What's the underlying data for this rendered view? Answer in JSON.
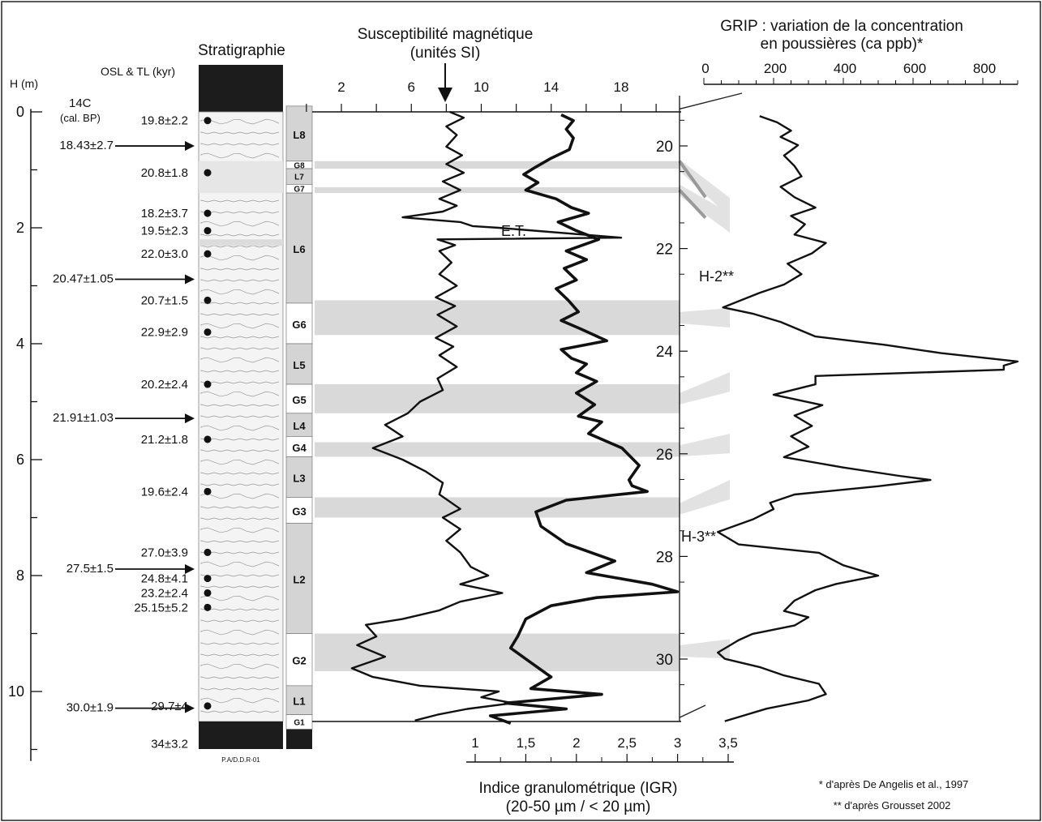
{
  "labels": {
    "h_axis_title": "H (m)",
    "c14_title": "14C",
    "c14_sub": "(cal. BP)",
    "osl_title": "OSL & TL (kyr)",
    "strat_title": "Stratigraphie",
    "susc_title_1": "Susceptibilité magnétique",
    "susc_title_2": "(unités SI)",
    "grip_title_1": "GRIP : variation de la concentration",
    "grip_title_2": "en poussières (ca ppb)*",
    "igr_title_1": "Indice granulométrique (IGR)",
    "igr_title_2": "(20-50 µm / < 20 µm)",
    "ref1": "* d'après De Angelis et al., 1997",
    "ref2": "** d'après Grousset 2002",
    "logo": "P.A/D.D.R-01",
    "et_label": "E.T.",
    "h2_label": "H-2**",
    "h3_label": "H-3**"
  },
  "chart_data": {
    "type": "line",
    "depth_axis": {
      "label": "H (m)",
      "ticks": [
        0,
        2,
        4,
        6,
        8,
        10
      ],
      "range": [
        0,
        10.8
      ]
    },
    "susceptibility_axis": {
      "label": "Susceptibilité magnétique (unités SI)",
      "ticks": [
        2,
        6,
        10,
        14,
        18
      ],
      "range": [
        0,
        20
      ]
    },
    "igr_axis": {
      "label": "Indice granulométrique (IGR) (20-50 µm / < 20 µm)",
      "ticks": [
        "1",
        "1,5",
        "2",
        "2,5",
        "3",
        "3,5"
      ],
      "range": [
        0.8,
        3.5
      ]
    },
    "grip_age_axis": {
      "ticks": [
        20,
        22,
        24,
        26,
        28,
        30
      ]
    },
    "grip_dust_axis": {
      "label": "GRIP : variation de la concentration en poussières (ca ppb)*",
      "ticks": [
        0,
        200,
        400,
        600,
        800
      ],
      "range": [
        0,
        900
      ]
    },
    "c14_dates": [
      {
        "label": "18.43±2.7",
        "depth": 0.7
      },
      {
        "label": "20.47±1.05",
        "depth": 3.0
      },
      {
        "label": "21.91±1.03",
        "depth": 5.4
      },
      {
        "label": "27.5±1.5",
        "depth": 8.0
      },
      {
        "label": "30.0±1.9",
        "depth": 10.4
      }
    ],
    "osl_dates": [
      {
        "label": "19.8±2.2",
        "depth": 0.15
      },
      {
        "label": "20.8±1.8",
        "depth": 1.05
      },
      {
        "label": "18.2±3.7",
        "depth": 1.75
      },
      {
        "label": "19.5±2.3",
        "depth": 2.05
      },
      {
        "label": "22.0±3.0",
        "depth": 2.45
      },
      {
        "label": "20.7±1.5",
        "depth": 3.25
      },
      {
        "label": "22.9±2.9",
        "depth": 3.8
      },
      {
        "label": "20.2±2.4",
        "depth": 4.7
      },
      {
        "label": "21.2±1.8",
        "depth": 5.65
      },
      {
        "label": "19.6±2.4",
        "depth": 6.55
      },
      {
        "label": "27.0±3.9",
        "depth": 7.6
      },
      {
        "label": "24.8±4.1",
        "depth": 8.05
      },
      {
        "label": "23.2±2.4",
        "depth": 8.3
      },
      {
        "label": "25.15±5.2",
        "depth": 8.55
      },
      {
        "label": "29.7±4",
        "depth": 10.25
      },
      {
        "label": "34±3.2",
        "depth": 10.9
      }
    ],
    "units": [
      {
        "label": "L8",
        "top": -0.1,
        "bottom": 0.85,
        "type": "L"
      },
      {
        "label": "G8",
        "top": 0.85,
        "bottom": 0.98,
        "type": "G"
      },
      {
        "label": "L7",
        "top": 0.98,
        "bottom": 1.25,
        "type": "L"
      },
      {
        "label": "G7",
        "top": 1.25,
        "bottom": 1.4,
        "type": "G"
      },
      {
        "label": "L6",
        "top": 1.4,
        "bottom": 3.3,
        "type": "L"
      },
      {
        "label": "G6",
        "top": 3.3,
        "bottom": 4.0,
        "type": "G"
      },
      {
        "label": "L5",
        "top": 4.0,
        "bottom": 4.7,
        "type": "L"
      },
      {
        "label": "G5",
        "top": 4.7,
        "bottom": 5.2,
        "type": "G"
      },
      {
        "label": "L4",
        "top": 5.2,
        "bottom": 5.6,
        "type": "L"
      },
      {
        "label": "G4",
        "top": 5.6,
        "bottom": 5.95,
        "type": "G"
      },
      {
        "label": "L3",
        "top": 5.95,
        "bottom": 6.65,
        "type": "L"
      },
      {
        "label": "G3",
        "top": 6.65,
        "bottom": 7.1,
        "type": "G"
      },
      {
        "label": "L2",
        "top": 7.1,
        "bottom": 9.0,
        "type": "L"
      },
      {
        "label": "G2",
        "top": 9.0,
        "bottom": 9.9,
        "type": "G"
      },
      {
        "label": "L1",
        "top": 9.9,
        "bottom": 10.4,
        "type": "L"
      },
      {
        "label": "G1",
        "top": 10.4,
        "bottom": 10.65,
        "type": "G"
      }
    ],
    "gley_bands": [
      {
        "top": 0.85,
        "bottom": 0.98
      },
      {
        "top": 1.3,
        "bottom": 1.4
      },
      {
        "top": 3.25,
        "bottom": 3.85
      },
      {
        "top": 4.7,
        "bottom": 5.2
      },
      {
        "top": 5.7,
        "bottom": 5.95
      },
      {
        "top": 6.65,
        "bottom": 7.0
      },
      {
        "top": 9.0,
        "bottom": 9.65
      }
    ],
    "series": [
      {
        "name": "Susceptibilité magnétique",
        "axis": "susceptibility",
        "points": [
          [
            8.2,
            0
          ],
          [
            9.0,
            0.1
          ],
          [
            8.0,
            0.25
          ],
          [
            8.6,
            0.4
          ],
          [
            8.0,
            0.6
          ],
          [
            8.9,
            0.75
          ],
          [
            8.0,
            0.9
          ],
          [
            9.0,
            1.05
          ],
          [
            7.8,
            1.2
          ],
          [
            8.8,
            1.35
          ],
          [
            7.6,
            1.5
          ],
          [
            8.6,
            1.62
          ],
          [
            7.8,
            1.72
          ],
          [
            5.5,
            1.82
          ],
          [
            8.8,
            1.9
          ],
          [
            9.5,
            1.97
          ],
          [
            11.0,
            2.0
          ],
          [
            18.0,
            2.17
          ],
          [
            7.5,
            2.2
          ],
          [
            8.5,
            2.3
          ],
          [
            7.6,
            2.4
          ],
          [
            8.3,
            2.6
          ],
          [
            7.6,
            2.8
          ],
          [
            8.6,
            3.0
          ],
          [
            7.4,
            3.2
          ],
          [
            8.5,
            3.35
          ],
          [
            7.5,
            3.5
          ],
          [
            8.6,
            3.7
          ],
          [
            7.4,
            3.9
          ],
          [
            8.4,
            4.05
          ],
          [
            7.6,
            4.2
          ],
          [
            8.6,
            4.4
          ],
          [
            7.5,
            4.6
          ],
          [
            7.8,
            4.8
          ],
          [
            6.5,
            5.0
          ],
          [
            5.8,
            5.2
          ],
          [
            4.5,
            5.4
          ],
          [
            5.5,
            5.6
          ],
          [
            3.8,
            5.8
          ],
          [
            5.5,
            6.0
          ],
          [
            6.8,
            6.2
          ],
          [
            7.8,
            6.4
          ],
          [
            7.6,
            6.6
          ],
          [
            8.8,
            6.85
          ],
          [
            7.8,
            7.0
          ],
          [
            8.8,
            7.2
          ],
          [
            8.0,
            7.4
          ],
          [
            8.8,
            7.6
          ],
          [
            9.4,
            7.85
          ],
          [
            10.4,
            8.0
          ],
          [
            8.8,
            8.15
          ],
          [
            11.2,
            8.3
          ],
          [
            8.8,
            8.45
          ],
          [
            7.6,
            8.6
          ],
          [
            5.5,
            8.75
          ],
          [
            3.4,
            8.85
          ],
          [
            4.0,
            9.05
          ],
          [
            2.9,
            9.2
          ],
          [
            4.5,
            9.4
          ],
          [
            2.6,
            9.6
          ],
          [
            3.8,
            9.75
          ],
          [
            6.5,
            9.9
          ],
          [
            11.0,
            10.0
          ],
          [
            10.0,
            10.1
          ],
          [
            11.8,
            10.2
          ],
          [
            9.2,
            10.3
          ],
          [
            7.5,
            10.4
          ],
          [
            6.2,
            10.5
          ]
        ]
      },
      {
        "name": "Indice granulométrique (IGR)",
        "axis": "igr",
        "points": [
          [
            1.85,
            0.05
          ],
          [
            1.97,
            0.15
          ],
          [
            1.9,
            0.3
          ],
          [
            1.97,
            0.45
          ],
          [
            1.93,
            0.65
          ],
          [
            1.75,
            0.8
          ],
          [
            1.6,
            0.95
          ],
          [
            1.48,
            1.08
          ],
          [
            1.62,
            1.22
          ],
          [
            1.5,
            1.35
          ],
          [
            1.8,
            1.5
          ],
          [
            1.95,
            1.65
          ],
          [
            2.12,
            1.75
          ],
          [
            1.82,
            1.9
          ],
          [
            2.0,
            2.05
          ],
          [
            2.22,
            2.2
          ],
          [
            1.9,
            2.4
          ],
          [
            2.1,
            2.55
          ],
          [
            1.88,
            2.7
          ],
          [
            2.0,
            2.9
          ],
          [
            1.8,
            3.05
          ],
          [
            1.92,
            3.25
          ],
          [
            2.02,
            3.45
          ],
          [
            1.85,
            3.6
          ],
          [
            2.05,
            3.75
          ],
          [
            2.3,
            3.95
          ],
          [
            1.85,
            4.1
          ],
          [
            1.95,
            4.25
          ],
          [
            2.1,
            4.35
          ],
          [
            2.0,
            4.5
          ],
          [
            2.2,
            4.65
          ],
          [
            2.0,
            4.85
          ],
          [
            2.18,
            5.05
          ],
          [
            2.02,
            5.25
          ],
          [
            2.25,
            5.35
          ],
          [
            2.12,
            5.55
          ],
          [
            2.45,
            5.8
          ],
          [
            2.62,
            6.1
          ],
          [
            2.52,
            6.35
          ],
          [
            2.55,
            6.45
          ],
          [
            2.7,
            6.55
          ],
          [
            1.9,
            6.7
          ],
          [
            1.6,
            6.9
          ],
          [
            1.65,
            7.15
          ],
          [
            1.9,
            7.45
          ],
          [
            2.38,
            7.75
          ],
          [
            2.1,
            7.95
          ],
          [
            2.75,
            8.15
          ],
          [
            3.0,
            8.28
          ],
          [
            2.2,
            8.38
          ],
          [
            1.75,
            8.52
          ],
          [
            1.5,
            8.75
          ],
          [
            1.42,
            9.05
          ],
          [
            1.35,
            9.25
          ],
          [
            1.55,
            9.5
          ],
          [
            1.75,
            9.75
          ],
          [
            1.55,
            9.95
          ],
          [
            2.25,
            10.05
          ],
          [
            1.3,
            10.2
          ],
          [
            1.9,
            10.3
          ],
          [
            1.15,
            10.42
          ],
          [
            1.35,
            10.55
          ]
        ]
      },
      {
        "name": "GRIP poussières",
        "axis": "grip_dust",
        "points": [
          [
            160,
            0.55
          ],
          [
            210,
            0.7
          ],
          [
            250,
            0.9
          ],
          [
            220,
            1.05
          ],
          [
            270,
            1.25
          ],
          [
            230,
            1.5
          ],
          [
            260,
            1.75
          ],
          [
            280,
            2.0
          ],
          [
            220,
            2.25
          ],
          [
            260,
            2.5
          ],
          [
            320,
            2.75
          ],
          [
            250,
            2.95
          ],
          [
            290,
            3.15
          ],
          [
            260,
            3.4
          ],
          [
            350,
            3.6
          ],
          [
            310,
            3.85
          ],
          [
            240,
            4.1
          ],
          [
            280,
            4.35
          ],
          [
            230,
            4.6
          ],
          [
            160,
            4.8
          ],
          [
            100,
            5.0
          ],
          [
            55,
            5.15
          ],
          [
            140,
            5.3
          ],
          [
            220,
            5.5
          ],
          [
            320,
            5.85
          ],
          [
            520,
            6.05
          ],
          [
            680,
            6.25
          ],
          [
            900,
            6.45
          ],
          [
            860,
            6.55
          ],
          [
            860,
            6.65
          ],
          [
            320,
            6.8
          ],
          [
            320,
            7.0
          ],
          [
            200,
            7.25
          ],
          [
            340,
            7.5
          ],
          [
            260,
            7.75
          ],
          [
            310,
            8.0
          ],
          [
            250,
            8.25
          ],
          [
            300,
            8.5
          ],
          [
            230,
            8.75
          ],
          [
            400,
            9.0
          ],
          [
            560,
            9.2
          ],
          [
            650,
            9.3
          ],
          [
            500,
            9.45
          ],
          [
            260,
            9.65
          ],
          [
            190,
            9.85
          ],
          [
            200,
            10.0
          ],
          [
            140,
            10.25
          ],
          [
            40,
            10.55
          ],
          [
            100,
            10.85
          ],
          [
            330,
            11.05
          ],
          [
            400,
            11.35
          ],
          [
            500,
            11.6
          ],
          [
            380,
            11.8
          ],
          [
            320,
            11.95
          ],
          [
            260,
            12.2
          ],
          [
            230,
            12.45
          ],
          [
            300,
            12.6
          ],
          [
            260,
            12.8
          ],
          [
            140,
            13.0
          ],
          [
            100,
            13.15
          ],
          [
            60,
            13.35
          ],
          [
            40,
            13.45
          ],
          [
            60,
            13.6
          ],
          [
            160,
            13.8
          ],
          [
            230,
            14.0
          ],
          [
            330,
            14.2
          ],
          [
            350,
            14.45
          ],
          [
            300,
            14.6
          ],
          [
            180,
            14.8
          ],
          [
            100,
            15.0
          ],
          [
            60,
            15.1
          ]
        ]
      }
    ]
  }
}
